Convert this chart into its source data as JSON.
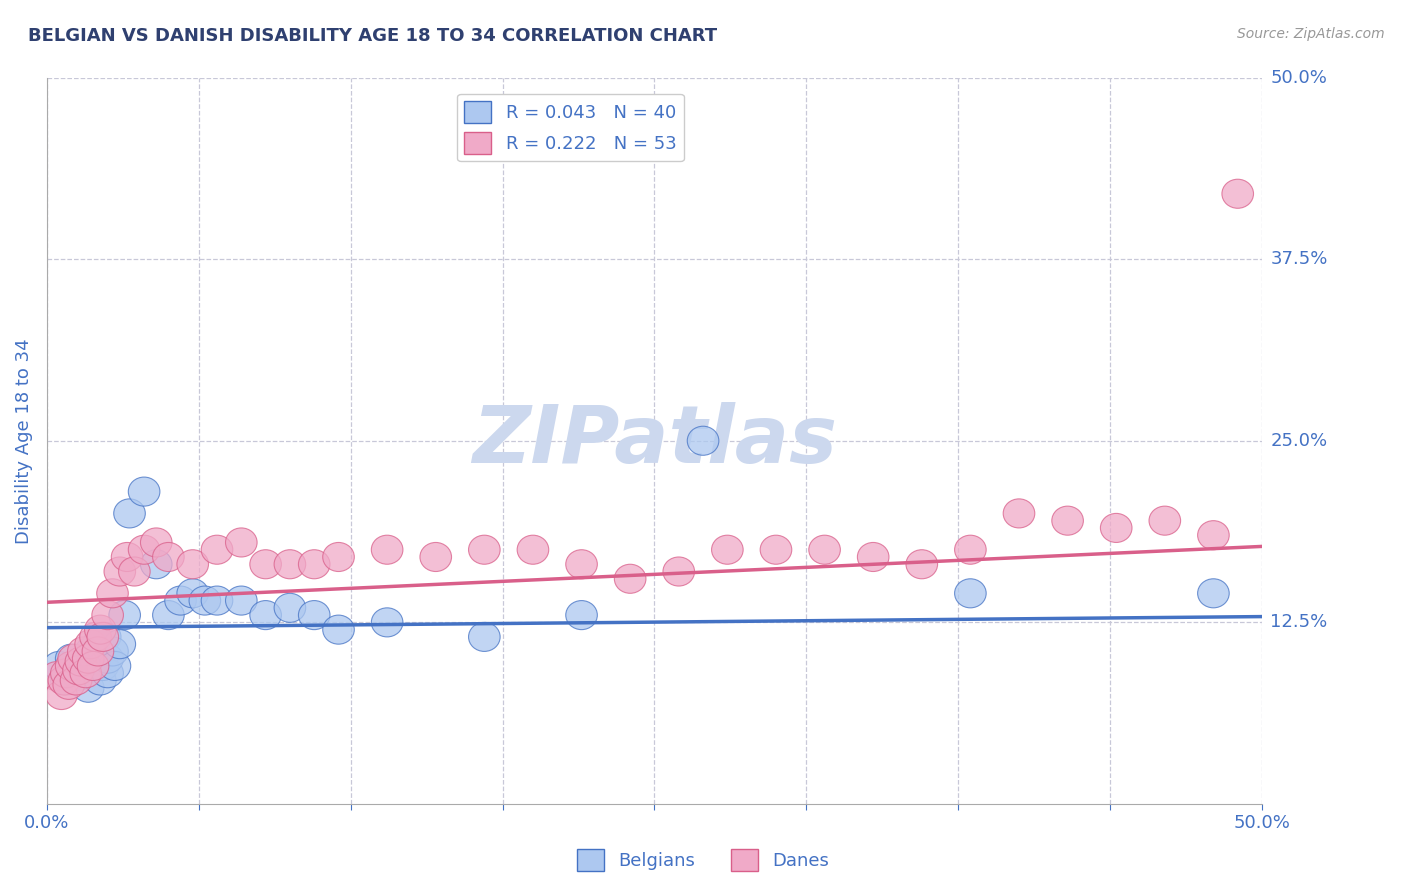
{
  "title": "BELGIAN VS DANISH DISABILITY AGE 18 TO 34 CORRELATION CHART",
  "source": "Source: ZipAtlas.com",
  "ylabel": "Disability Age 18 to 34",
  "xlim": [
    0.0,
    0.5
  ],
  "ylim": [
    0.0,
    0.5
  ],
  "yticks": [
    0.125,
    0.25,
    0.375,
    0.5
  ],
  "ytick_labels": [
    "12.5%",
    "25.0%",
    "37.5%",
    "50.0%"
  ],
  "xticks": [
    0.0,
    0.0625,
    0.125,
    0.1875,
    0.25,
    0.3125,
    0.375,
    0.4375,
    0.5
  ],
  "xtick_labels": [
    "0.0%",
    "",
    "",
    "",
    "",
    "",
    "",
    "",
    "50.0%"
  ],
  "belgian_color": "#adc8f0",
  "danish_color": "#f0aac8",
  "belgian_line_color": "#4472c4",
  "danish_line_color": "#d95f8a",
  "label_color": "#4472c4",
  "title_color": "#2f4070",
  "R_belgian": 0.043,
  "N_belgian": 40,
  "R_danish": 0.222,
  "N_danish": 53,
  "belgians_x": [
    0.005,
    0.008,
    0.01,
    0.012,
    0.013,
    0.015,
    0.016,
    0.017,
    0.018,
    0.018,
    0.02,
    0.021,
    0.022,
    0.023,
    0.024,
    0.025,
    0.025,
    0.027,
    0.028,
    0.03,
    0.032,
    0.034,
    0.04,
    0.045,
    0.05,
    0.055,
    0.06,
    0.065,
    0.07,
    0.08,
    0.09,
    0.1,
    0.11,
    0.12,
    0.14,
    0.18,
    0.22,
    0.27,
    0.38,
    0.48
  ],
  "belgians_y": [
    0.095,
    0.085,
    0.1,
    0.09,
    0.088,
    0.092,
    0.095,
    0.08,
    0.105,
    0.095,
    0.1,
    0.11,
    0.085,
    0.095,
    0.115,
    0.09,
    0.1,
    0.105,
    0.095,
    0.11,
    0.13,
    0.2,
    0.215,
    0.165,
    0.13,
    0.14,
    0.145,
    0.14,
    0.14,
    0.14,
    0.13,
    0.135,
    0.13,
    0.12,
    0.125,
    0.115,
    0.13,
    0.25,
    0.145,
    0.145
  ],
  "danes_x": [
    0.004,
    0.006,
    0.007,
    0.008,
    0.009,
    0.01,
    0.011,
    0.012,
    0.013,
    0.014,
    0.015,
    0.016,
    0.017,
    0.018,
    0.019,
    0.02,
    0.021,
    0.022,
    0.023,
    0.025,
    0.027,
    0.03,
    0.033,
    0.036,
    0.04,
    0.045,
    0.05,
    0.06,
    0.07,
    0.08,
    0.09,
    0.1,
    0.11,
    0.12,
    0.14,
    0.16,
    0.18,
    0.2,
    0.22,
    0.24,
    0.26,
    0.28,
    0.3,
    0.32,
    0.34,
    0.36,
    0.38,
    0.4,
    0.42,
    0.44,
    0.46,
    0.48,
    0.49
  ],
  "danes_y": [
    0.088,
    0.075,
    0.085,
    0.09,
    0.082,
    0.095,
    0.1,
    0.085,
    0.092,
    0.098,
    0.105,
    0.09,
    0.1,
    0.11,
    0.095,
    0.115,
    0.105,
    0.12,
    0.115,
    0.13,
    0.145,
    0.16,
    0.17,
    0.16,
    0.175,
    0.18,
    0.17,
    0.165,
    0.175,
    0.18,
    0.165,
    0.165,
    0.165,
    0.17,
    0.175,
    0.17,
    0.175,
    0.175,
    0.165,
    0.155,
    0.16,
    0.175,
    0.175,
    0.175,
    0.17,
    0.165,
    0.175,
    0.2,
    0.195,
    0.19,
    0.195,
    0.185,
    0.42
  ],
  "watermark_text": "ZIPatlas",
  "watermark_color": "#ccd8ee",
  "background_color": "#ffffff",
  "grid_color": "#c8c8d8"
}
